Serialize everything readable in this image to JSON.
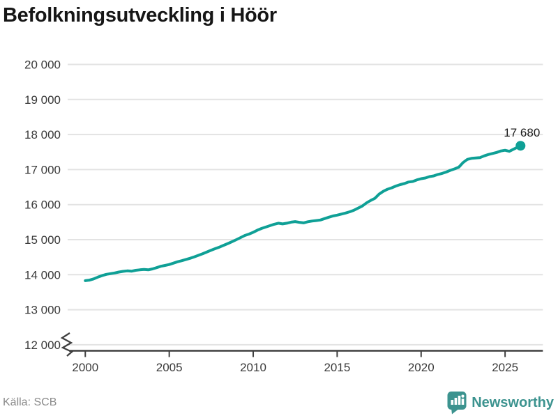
{
  "title": "Befolkningsutveckling i Höör",
  "footer": {
    "source": "Källa: SCB",
    "brand": "Newsworthy"
  },
  "colors": {
    "line": "#0fa096",
    "brand": "#3c938f",
    "grid": "#e3e3e3",
    "axis": "#3f3f3f",
    "tick_label": "#3a3a3a",
    "annotation": "#1c1c1c"
  },
  "chart_data": {
    "type": "line",
    "title": "Befolkningsutveckling i Höör",
    "xlabel": "",
    "ylabel": "",
    "grid": "horizontal",
    "legend": "none",
    "xlim": [
      1998.95,
      2027.25
    ],
    "ylim": [
      12000,
      20000
    ],
    "axis_break": true,
    "x_ticks": [
      2000,
      2005,
      2010,
      2015,
      2020,
      2025
    ],
    "x_tick_labels": [
      "2000",
      "2005",
      "2010",
      "2015",
      "2020",
      "2025"
    ],
    "y_ticks": [
      12000,
      13000,
      14000,
      15000,
      16000,
      17000,
      18000,
      19000,
      20000
    ],
    "y_tick_labels": [
      "12 000",
      "13 000",
      "14 000",
      "15 000",
      "16 000",
      "17 000",
      "18 000",
      "19 000",
      "20 000"
    ],
    "end_label": "17 680",
    "end_value": 17680,
    "series": [
      {
        "name": "Befolkning",
        "x": [
          2000,
          2000.25,
          2000.5,
          2000.75,
          2001,
          2001.25,
          2001.5,
          2001.75,
          2002,
          2002.25,
          2002.5,
          2002.75,
          2003,
          2003.25,
          2003.5,
          2003.75,
          2004,
          2004.25,
          2004.5,
          2004.75,
          2005,
          2005.25,
          2005.5,
          2005.75,
          2006,
          2006.25,
          2006.5,
          2006.75,
          2007,
          2007.25,
          2007.5,
          2007.75,
          2008,
          2008.25,
          2008.5,
          2008.75,
          2009,
          2009.25,
          2009.5,
          2009.75,
          2010,
          2010.25,
          2010.5,
          2010.75,
          2011,
          2011.25,
          2011.5,
          2011.75,
          2012,
          2012.25,
          2012.5,
          2012.75,
          2013,
          2013.25,
          2013.5,
          2013.75,
          2014,
          2014.25,
          2014.5,
          2014.75,
          2015,
          2015.25,
          2015.5,
          2015.75,
          2016,
          2016.25,
          2016.5,
          2016.75,
          2017,
          2017.25,
          2017.5,
          2017.75,
          2018,
          2018.25,
          2018.5,
          2018.75,
          2019,
          2019.25,
          2019.5,
          2019.75,
          2020,
          2020.25,
          2020.5,
          2020.75,
          2021,
          2021.25,
          2021.5,
          2021.75,
          2022,
          2022.25,
          2022.5,
          2022.75,
          2023,
          2023.25,
          2023.5,
          2023.75,
          2024,
          2024.25,
          2024.5,
          2024.75,
          2025,
          2025.25,
          2025.5,
          2025.75,
          2025.92
        ],
        "y": [
          13830,
          13845,
          13880,
          13930,
          13975,
          14010,
          14030,
          14050,
          14075,
          14095,
          14110,
          14100,
          14125,
          14140,
          14150,
          14140,
          14165,
          14200,
          14240,
          14265,
          14290,
          14330,
          14370,
          14400,
          14435,
          14470,
          14510,
          14555,
          14600,
          14650,
          14700,
          14745,
          14790,
          14840,
          14890,
          14945,
          15000,
          15060,
          15120,
          15160,
          15210,
          15270,
          15320,
          15360,
          15400,
          15440,
          15470,
          15450,
          15470,
          15500,
          15515,
          15495,
          15480,
          15510,
          15530,
          15545,
          15560,
          15600,
          15640,
          15675,
          15700,
          15730,
          15760,
          15795,
          15840,
          15900,
          15960,
          16050,
          16120,
          16180,
          16300,
          16380,
          16440,
          16480,
          16530,
          16570,
          16600,
          16645,
          16660,
          16705,
          16740,
          16760,
          16800,
          16820,
          16860,
          16890,
          16930,
          16980,
          17020,
          17070,
          17200,
          17290,
          17320,
          17330,
          17340,
          17390,
          17430,
          17460,
          17490,
          17530,
          17550,
          17520,
          17580,
          17640,
          17680
        ]
      }
    ]
  }
}
